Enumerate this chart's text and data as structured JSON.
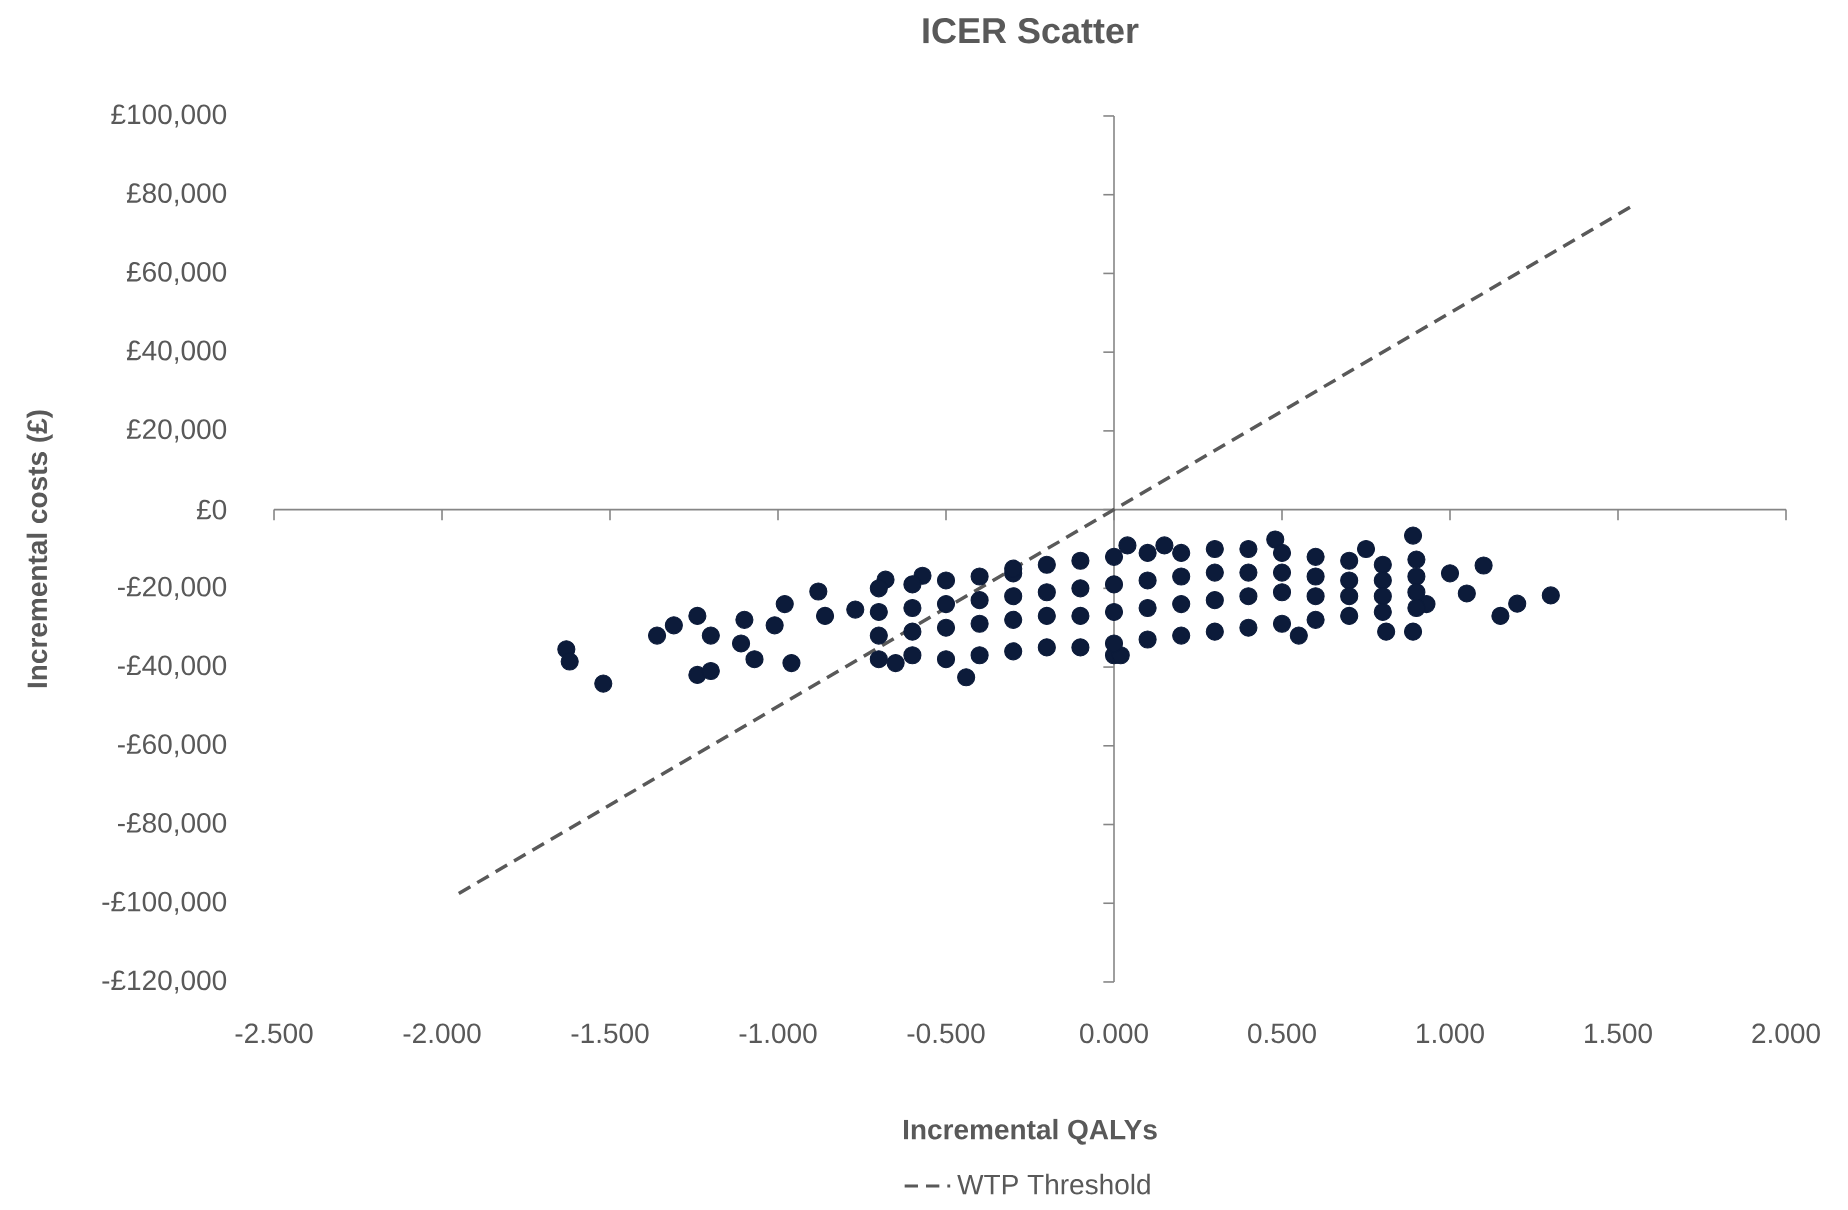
{
  "chart_data": {
    "type": "scatter",
    "title": "ICER Scatter",
    "xlabel": "Incremental QALYs",
    "ylabel": "Incremental costs (£)",
    "xlim": [
      -2.5,
      2.0
    ],
    "xticks": [
      {
        "value": -2.5,
        "label": "-2.500"
      },
      {
        "value": -2.0,
        "label": "-2.000"
      },
      {
        "value": -1.5,
        "label": "-1.500"
      },
      {
        "value": -1.0,
        "label": "-1.000"
      },
      {
        "value": -0.5,
        "label": "-0.500"
      },
      {
        "value": 0,
        "label": "0.000"
      },
      {
        "value": 0.5,
        "label": "0.500"
      },
      {
        "value": 1.0,
        "label": "1.000"
      },
      {
        "value": 1.5,
        "label": "1.500"
      },
      {
        "value": 2.0,
        "label": "2.000"
      }
    ],
    "ylim": [
      -120000,
      100000
    ],
    "yticks": [
      {
        "value": -120000,
        "label": "-£120,000"
      },
      {
        "value": -100000,
        "label": "-£100,000"
      },
      {
        "value": -80000,
        "label": "-£80,000"
      },
      {
        "value": -60000,
        "label": "-£60,000"
      },
      {
        "value": -40000,
        "label": "-£40,000"
      },
      {
        "value": -20000,
        "label": "-£20,000"
      },
      {
        "value": 0,
        "label": "£0"
      },
      {
        "value": 20000,
        "label": "£20,000"
      },
      {
        "value": 40000,
        "label": "£40,000"
      },
      {
        "value": 60000,
        "label": "£60,000"
      },
      {
        "value": 80000,
        "label": "£80,000"
      },
      {
        "value": 100000,
        "label": "£100,000"
      }
    ],
    "legend": "bottom",
    "series": [
      {
        "type": "scatter",
        "color": "#0c1b3a",
        "marker": "circle",
        "x": [
          -1.63,
          -1.62,
          -1.52,
          -1.36,
          -1.31,
          -1.24,
          -1.2,
          -1.24,
          -1.2,
          -1.1,
          -0.98,
          -0.88,
          -1.11,
          -1.07,
          -1.01,
          -0.96,
          -0.86,
          -0.68,
          -0.57,
          -0.44,
          -0.77,
          -0.65,
          -0.3,
          0.04,
          0.0,
          0.15,
          0.48,
          0.75,
          0.89,
          0.9,
          1.0,
          1.1,
          1.15,
          1.2,
          1.3,
          0.81,
          0.89,
          0.55,
          0.02,
          1.05,
          0.93,
          -0.7,
          -0.7,
          -0.7,
          -0.7,
          -0.6,
          -0.6,
          -0.6,
          -0.6,
          -0.5,
          -0.5,
          -0.5,
          -0.5,
          -0.4,
          -0.4,
          -0.4,
          -0.4,
          -0.3,
          -0.3,
          -0.3,
          -0.3,
          -0.2,
          -0.2,
          -0.2,
          -0.2,
          -0.1,
          -0.1,
          -0.1,
          -0.1,
          0.0,
          0.0,
          0.0,
          0.0,
          0.1,
          0.1,
          0.1,
          0.1,
          0.2,
          0.2,
          0.2,
          0.2,
          0.3,
          0.3,
          0.3,
          0.3,
          0.4,
          0.4,
          0.4,
          0.4,
          0.5,
          0.5,
          0.5,
          0.5,
          0.6,
          0.6,
          0.6,
          0.6,
          0.7,
          0.7,
          0.7,
          0.7,
          0.8,
          0.8,
          0.8,
          0.8,
          0.9,
          0.9,
          0.9
        ],
        "values": [
          -35500,
          -38600,
          -44200,
          -32000,
          -29400,
          -27000,
          -32000,
          -42000,
          -41000,
          -28000,
          -24000,
          -20800,
          -34000,
          -38000,
          -29400,
          -39000,
          -27000,
          -17800,
          -16800,
          -42600,
          -25400,
          -39000,
          -16200,
          -9100,
          -37000,
          -9100,
          -7600,
          -10000,
          -6600,
          -12700,
          -16200,
          -14200,
          -27000,
          -23900,
          -21800,
          -31000,
          -31000,
          -32000,
          -37000,
          -21300,
          -24000,
          -20000,
          -26000,
          -32000,
          -38000,
          -19000,
          -25000,
          -31000,
          -37000,
          -18000,
          -24000,
          -30000,
          -38000,
          -17000,
          -23000,
          -29000,
          -37000,
          -15000,
          -22000,
          -28000,
          -36000,
          -14000,
          -21000,
          -27000,
          -35000,
          -13000,
          -20000,
          -27000,
          -35000,
          -12000,
          -19000,
          -26000,
          -34000,
          -11000,
          -18000,
          -25000,
          -33000,
          -11000,
          -17000,
          -24000,
          -32000,
          -10000,
          -16000,
          -23000,
          -31000,
          -10000,
          -16000,
          -22000,
          -30000,
          -11000,
          -16000,
          -21000,
          -29000,
          -12000,
          -17000,
          -22000,
          -28000,
          -13000,
          -18000,
          -22000,
          -27000,
          -14000,
          -18000,
          -22000,
          -26000,
          -17000,
          -21000,
          -25000
        ]
      },
      {
        "type": "line",
        "name": "WTP Threshold",
        "color": "#595959",
        "line_style": "dashed",
        "marker": "none",
        "x": [
          -1.95,
          1.55
        ],
        "values": [
          -97500,
          77500
        ]
      }
    ]
  }
}
